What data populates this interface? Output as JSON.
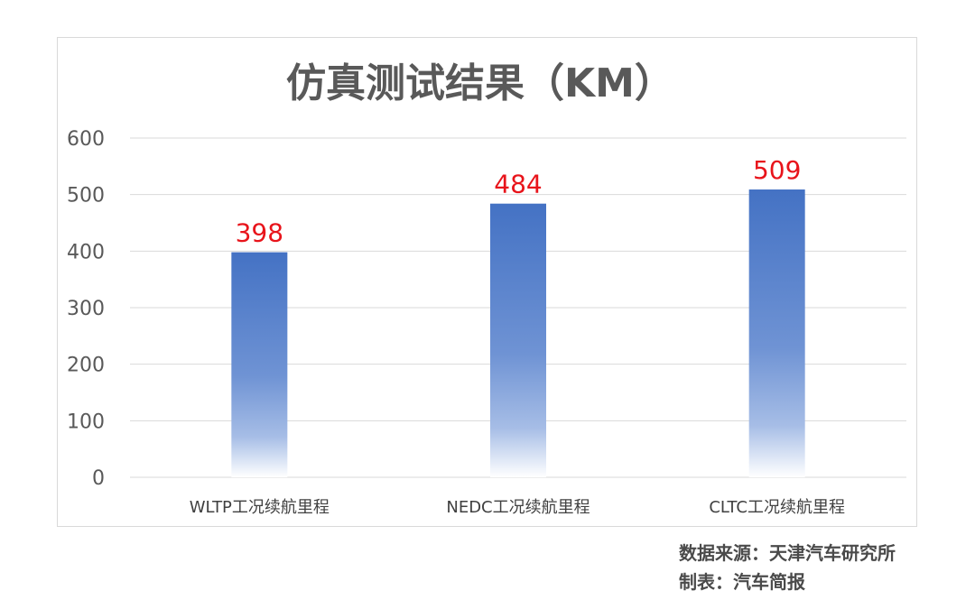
{
  "chart_data": {
    "type": "bar",
    "title": "仿真测试结果（KM）",
    "categories": [
      "WLTP工况续航里程",
      "NEDC工况续航里程",
      "CLTC工况续航里程"
    ],
    "values": [
      398,
      484,
      509
    ],
    "data_labels": [
      "398",
      "484",
      "509"
    ],
    "ylim": [
      0,
      600
    ],
    "yticks": [
      0,
      100,
      200,
      300,
      400,
      500,
      600
    ],
    "xlabel": "",
    "ylabel": "",
    "grid": true,
    "legend": "none",
    "bar_color": "#4472c4",
    "label_color": "#e8141b"
  },
  "footer": {
    "source": "数据来源：天津汽车研究所",
    "maker": "制表：汽车简报"
  }
}
